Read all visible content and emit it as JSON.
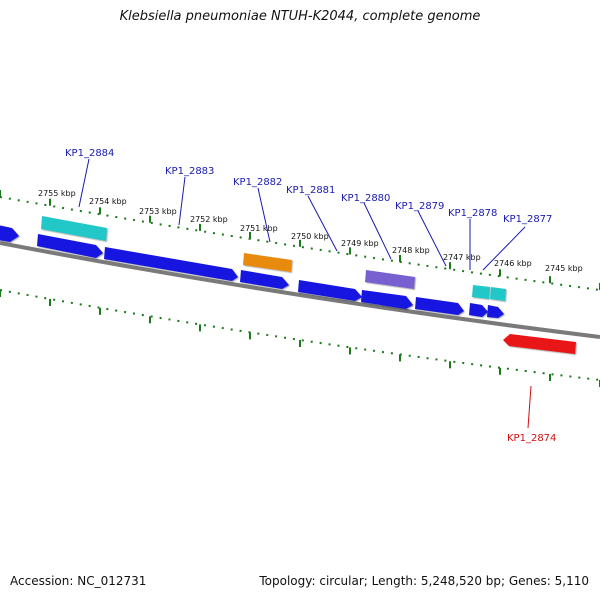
{
  "title": "Klebsiella pneumoniae NTUH-K2044, complete genome",
  "footer": {
    "accession": "Accession: NC_012731",
    "summary": "Topology: circular; Length: 5,248,520 bp; Genes: 5,110"
  },
  "colors": {
    "backbone": "#7a7a7a",
    "tick": "#1a7a1a",
    "cds": "#1414e0",
    "trna": "#22c8c8",
    "rrna": "#e88a10",
    "misc": "#7860d0",
    "reverse_highlight": "#e81414",
    "label_forward": "#1a1ab0",
    "label_reverse": "#d01010"
  },
  "tick_labels": [
    "2755 kbp",
    "2754 kbp",
    "2753 kbp",
    "2752 kbp",
    "2751 kbp",
    "2750 kbp",
    "2749 kbp",
    "2748 kbp",
    "2747 kbp",
    "2746 kbp",
    "2745 kbp"
  ],
  "gene_labels": [
    "KP1_2884",
    "KP1_2883",
    "KP1_2882",
    "KP1_2881",
    "KP1_2880",
    "KP1_2879",
    "KP1_2878",
    "KP1_2877",
    "KP1_2874"
  ]
}
